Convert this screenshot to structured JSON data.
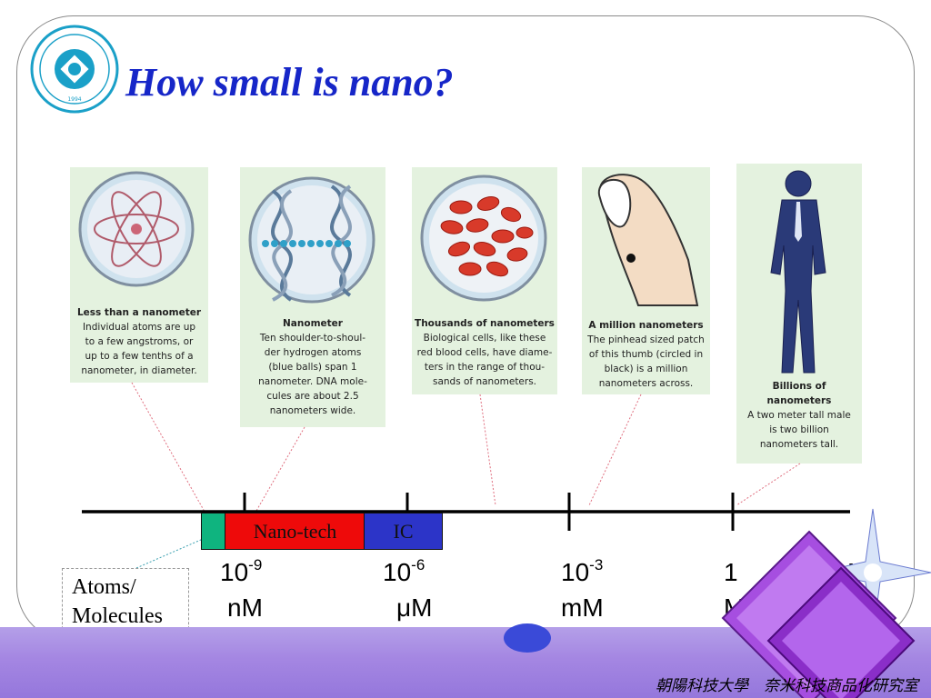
{
  "logo": {
    "text": "朝陽科技大學 CHAOYANG UNIVERSITY OF TECHNOLOGY",
    "year": "1994"
  },
  "title": "How small is nano?",
  "cards": [
    {
      "heading": "Less than a nanometer",
      "body": [
        "Individual atoms are up",
        "to a few angstroms, or",
        "up to a few tenths of a",
        "nanometer, in diameter."
      ]
    },
    {
      "heading": "Nanometer",
      "body": [
        "Ten shoulder-to-shoul-",
        "der hydrogen atoms",
        "(blue balls) span 1",
        "nanometer. DNA mole-",
        "cules are about 2.5",
        "nanometers wide."
      ]
    },
    {
      "heading": "Thousands of nanometers",
      "body": [
        "Biological cells, like these",
        "red blood cells, have diame-",
        "ters in the range of thou-",
        "sands of nanometers."
      ]
    },
    {
      "heading": "A million nanometers",
      "body": [
        "The pinhead sized patch",
        "of this thumb (circled in",
        "black) is a million",
        "nanometers across."
      ]
    },
    {
      "heading": "Billions of nanometers",
      "body": [
        "A two meter tall male",
        "is two billion",
        "nanometers tall."
      ]
    }
  ],
  "scale": {
    "boxes": {
      "nano": "Nano-tech",
      "ic": "IC"
    },
    "ticks": [
      {
        "base": "10",
        "exp": "-9",
        "unit": "nM"
      },
      {
        "base": "10",
        "exp": "-6",
        "unit": "μM"
      },
      {
        "base": "10",
        "exp": "-3",
        "unit": "mM"
      },
      {
        "base": "1",
        "exp": "",
        "unit": "M"
      }
    ],
    "far_right": "M",
    "atoms_label": [
      "Atoms/",
      "Molecules"
    ]
  },
  "footer": "朝陽科技大學　奈米科技商品化研究室",
  "colors": {
    "title": "#1626c8",
    "nano_box": "#ee0a0a",
    "ic_box": "#2c34c8",
    "atoms_box": "#0fb47f",
    "band": "#a486e2"
  }
}
